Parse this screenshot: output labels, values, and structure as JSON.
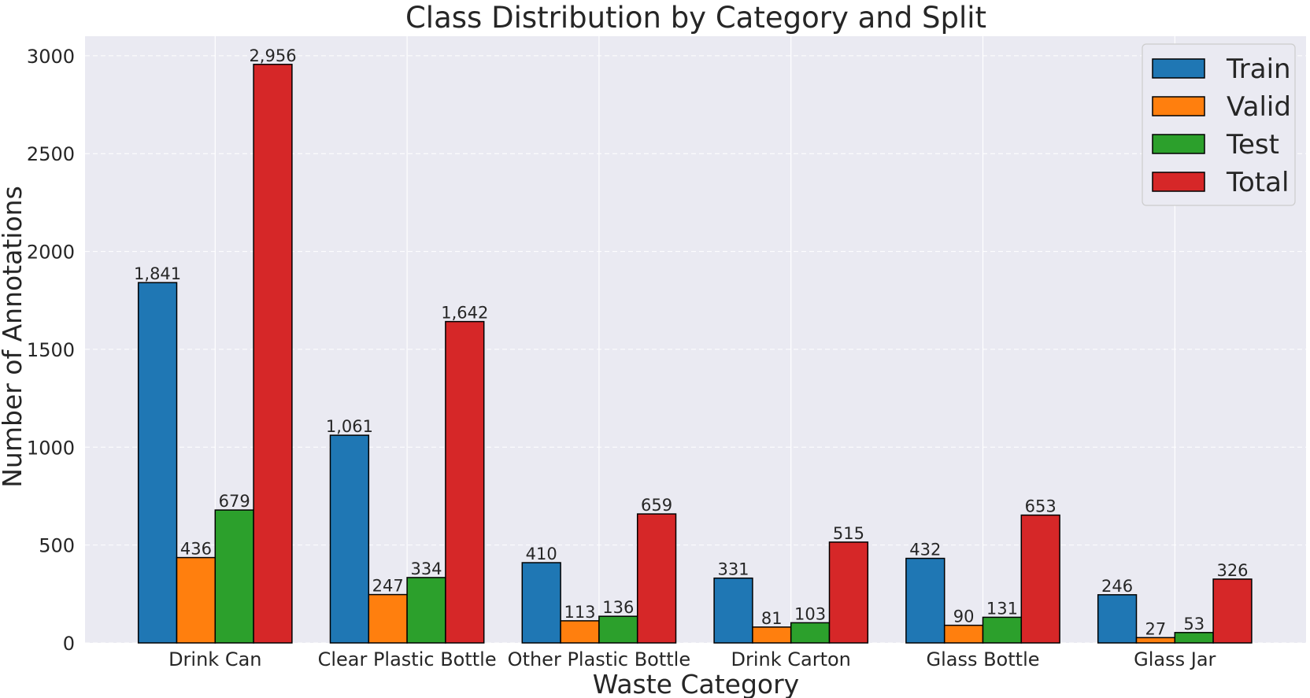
{
  "chart_data": {
    "type": "bar",
    "title": "Class Distribution by Category and Split",
    "xlabel": "Waste Category",
    "ylabel": "Number of Annotations",
    "categories": [
      "Drink Can",
      "Clear Plastic Bottle",
      "Other Plastic Bottle",
      "Drink Carton",
      "Glass Bottle",
      "Glass Jar"
    ],
    "series": [
      {
        "name": "Train",
        "color": "#1f77b4",
        "values": [
          1841,
          1061,
          410,
          331,
          432,
          246
        ],
        "labels": [
          "1,841",
          "1,061",
          "410",
          "331",
          "432",
          "246"
        ]
      },
      {
        "name": "Valid",
        "color": "#ff7f0e",
        "values": [
          436,
          247,
          113,
          81,
          90,
          27
        ],
        "labels": [
          "436",
          "247",
          "113",
          "81",
          "90",
          "27"
        ]
      },
      {
        "name": "Test",
        "color": "#2ca02c",
        "values": [
          679,
          334,
          136,
          103,
          131,
          53
        ],
        "labels": [
          "679",
          "334",
          "136",
          "103",
          "131",
          "53"
        ]
      },
      {
        "name": "Total",
        "color": "#d62728",
        "values": [
          2956,
          1642,
          659,
          515,
          653,
          326
        ],
        "labels": [
          "2,956",
          "1,642",
          "659",
          "515",
          "653",
          "326"
        ]
      }
    ],
    "ylim": [
      0,
      3100
    ],
    "yticks": [
      0,
      500,
      1000,
      1500,
      2000,
      2500,
      3000
    ],
    "grid": true,
    "legend_position": "top-right",
    "background": "#eaeaf2"
  }
}
